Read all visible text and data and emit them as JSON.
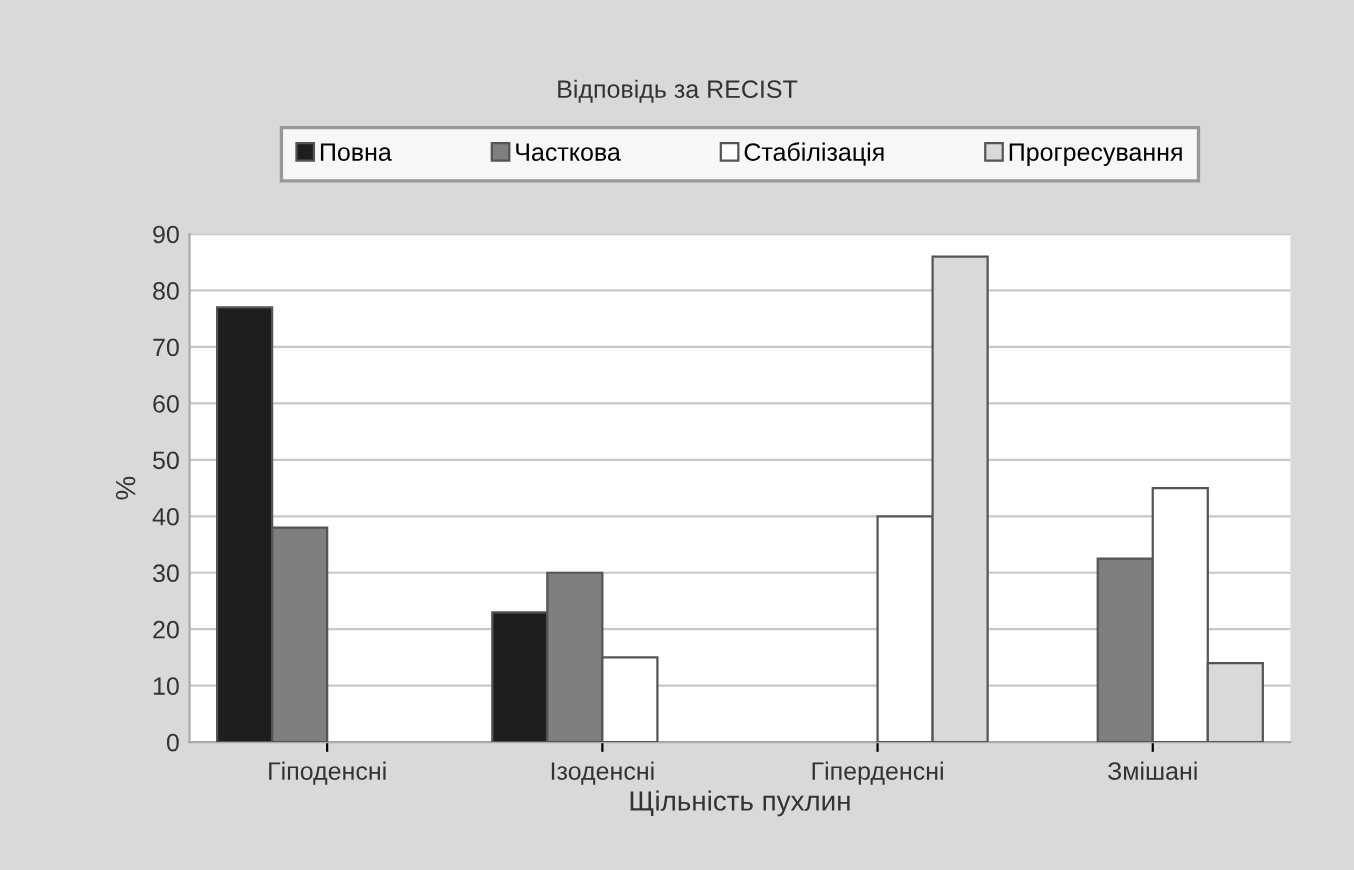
{
  "chart_data": {
    "type": "bar",
    "legend_title": "Відповідь за RECIST",
    "xlabel": "Щільність пухлин",
    "ylabel": "%",
    "categories": [
      "Гіподенсні",
      "Ізоденсні",
      "Гіперденсні",
      "Змішані"
    ],
    "series": [
      {
        "name": "Повна",
        "color": "#1e1e1e",
        "values": [
          77,
          23,
          null,
          null
        ]
      },
      {
        "name": "Часткова",
        "color": "#7f7f7f",
        "values": [
          38,
          30,
          null,
          32.5
        ]
      },
      {
        "name": "Стабілізація",
        "color": "#ffffff",
        "values": [
          null,
          15,
          40,
          45
        ]
      },
      {
        "name": "Прогресування",
        "color": "#d9d9d9",
        "values": [
          null,
          null,
          86,
          14
        ]
      }
    ],
    "ylim": [
      0,
      90
    ],
    "yticks": [
      0,
      10,
      20,
      30,
      40,
      50,
      60,
      70,
      80,
      90
    ],
    "grid": "y",
    "legend": "top"
  }
}
